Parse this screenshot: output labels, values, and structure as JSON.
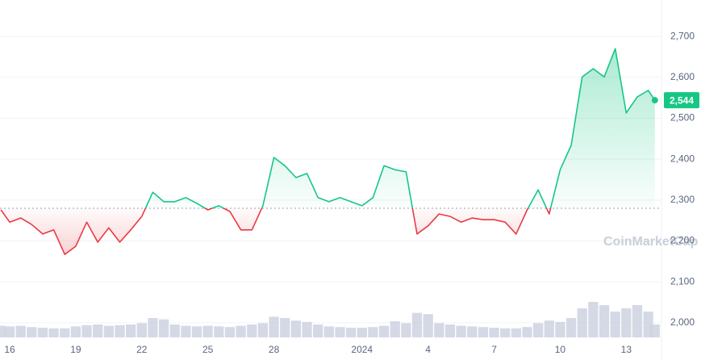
{
  "chart_data": {
    "type": "line",
    "x": [
      -0.4,
      0,
      0.5,
      1,
      1.5,
      2,
      2.5,
      3,
      3.5,
      4,
      4.5,
      5,
      5.5,
      6,
      6.5,
      7,
      7.5,
      8,
      8.5,
      9,
      9.5,
      10,
      10.5,
      11,
      11.5,
      12,
      12.5,
      13,
      13.5,
      14,
      14.5,
      15,
      15.5,
      16,
      16.5,
      17,
      17.5,
      18,
      18.5,
      19,
      19.5,
      20,
      20.5,
      21,
      21.5,
      22,
      22.5,
      23,
      23.5,
      24,
      24.5,
      25,
      25.5,
      26,
      26.5,
      27,
      27.5,
      28,
      28.5,
      29,
      29.3
    ],
    "series": [
      {
        "color": "#16c784",
        "values": [
          2276,
          2246,
          2256,
          2240,
          2217,
          2227,
          2167,
          2187,
          2246,
          2197,
          2232,
          2197,
          2227,
          2260,
          2319,
          2296,
          2296,
          2306,
          2292,
          2276,
          2286,
          2272,
          2227,
          2227,
          2286,
          2404,
          2384,
          2355,
          2365,
          2306,
          2296,
          2306,
          2296,
          2286,
          2306,
          2384,
          2374,
          2369,
          2217,
          2237,
          2266,
          2260,
          2246,
          2256,
          2252,
          2252,
          2246,
          2217,
          2276,
          2325,
          2266,
          2374,
          2434,
          2601,
          2621,
          2601,
          2670,
          2513,
          2552,
          2568,
          2544
        ]
      },
      {
        "color": "#ccd2e0",
        "values": [
          18,
          17,
          18,
          16,
          15,
          14,
          14,
          17,
          19,
          20,
          18,
          19,
          20,
          22,
          30,
          28,
          20,
          18,
          17,
          18,
          17,
          16,
          18,
          20,
          22,
          32,
          30,
          26,
          24,
          20,
          17,
          16,
          15,
          15,
          16,
          18,
          25,
          22,
          38,
          36,
          22,
          20,
          18,
          17,
          16,
          15,
          14,
          14,
          16,
          22,
          26,
          24,
          30,
          45,
          55,
          50,
          40,
          45,
          50,
          40,
          20
        ]
      }
    ],
    "negative_color": "#ea3943",
    "baseline": 2280,
    "last_price_label": "2,544",
    "watermark": "CoinMarketCap",
    "xlim": [
      -0.44,
      29.6
    ],
    "xticks": [
      {
        "value": 0,
        "label": "16"
      },
      {
        "value": 3,
        "label": "19"
      },
      {
        "value": 6,
        "label": "22"
      },
      {
        "value": 9,
        "label": "25"
      },
      {
        "value": 12,
        "label": "28"
      },
      {
        "value": 16,
        "label": "2024"
      },
      {
        "value": 19,
        "label": "4"
      },
      {
        "value": 22,
        "label": "7"
      },
      {
        "value": 25,
        "label": "10"
      },
      {
        "value": 28,
        "label": "13"
      }
    ],
    "ylim": [
      1909,
      2789
    ],
    "yticks": [
      {
        "value": 2000,
        "label": "2,000"
      },
      {
        "value": 2100,
        "label": "2,100"
      },
      {
        "value": 2200,
        "label": "2,200"
      },
      {
        "value": 2300,
        "label": "2,300"
      },
      {
        "value": 2400,
        "label": "2,400"
      },
      {
        "value": 2500,
        "label": "2,500"
      },
      {
        "value": 2600,
        "label": "2,600"
      },
      {
        "value": 2700,
        "label": "2,700"
      }
    ],
    "volume_lim": [
      0,
      100
    ],
    "grid": true
  }
}
